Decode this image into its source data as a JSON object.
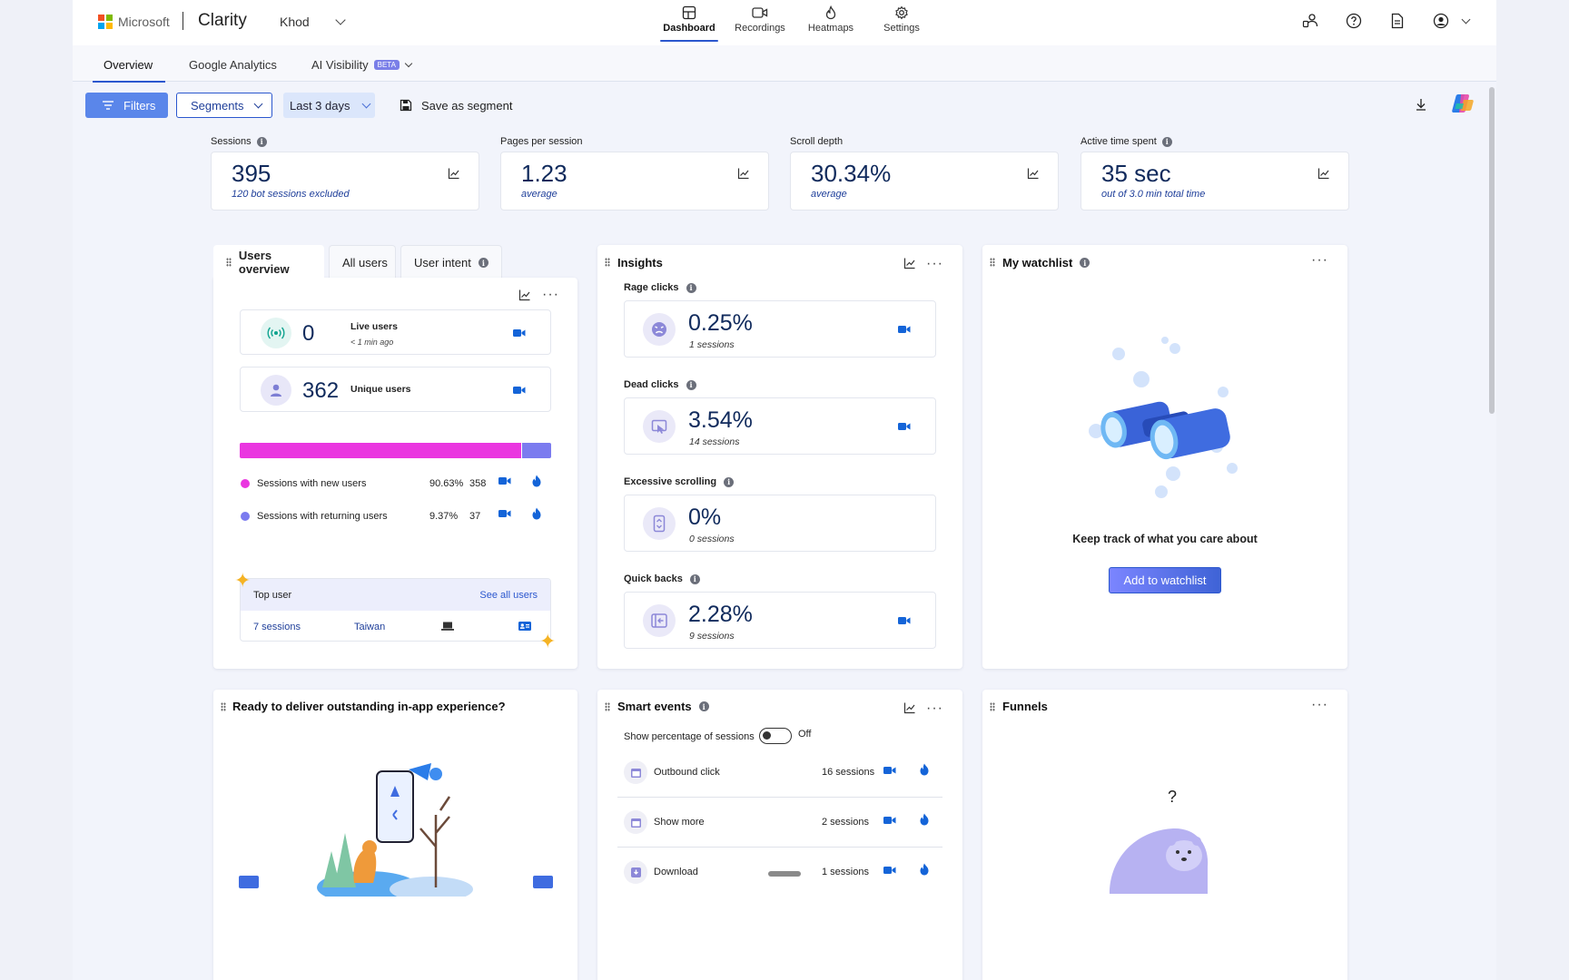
{
  "header": {
    "ms_label": "Microsoft",
    "brand": "Clarity",
    "project": "Khod",
    "nav": [
      {
        "label": "Dashboard",
        "icon": "dashboard-icon",
        "active": true
      },
      {
        "label": "Recordings",
        "icon": "video-icon",
        "active": false
      },
      {
        "label": "Heatmaps",
        "icon": "flame-icon",
        "active": false
      },
      {
        "label": "Settings",
        "icon": "gear-icon",
        "active": false
      }
    ],
    "actions": [
      "share-people-icon",
      "help-icon",
      "document-icon",
      "account-icon"
    ],
    "accent": "#2b57ce"
  },
  "subtabs": {
    "overview": "Overview",
    "ga": "Google Analytics",
    "ai": "AI Visibility",
    "beta": "BETA"
  },
  "toolbar": {
    "filters": "Filters",
    "segments": "Segments",
    "days": "Last 3 days",
    "save": "Save as segment"
  },
  "kpis": [
    {
      "label": "Sessions",
      "value": "395",
      "sub": "120 bot sessions excluded",
      "info": true
    },
    {
      "label": "Pages per session",
      "value": "1.23",
      "sub": "average",
      "info": false
    },
    {
      "label": "Scroll depth",
      "value": "30.34%",
      "sub": "average",
      "info": false
    },
    {
      "label": "Active time spent",
      "value": "35 sec",
      "sub": "out of 3.0 min total time",
      "info": true
    }
  ],
  "users": {
    "tabs": [
      "Users overview",
      "All users",
      "User intent"
    ],
    "live": {
      "value": "0",
      "label": "Live users",
      "sub": "< 1 min ago"
    },
    "unique": {
      "value": "362",
      "label": "Unique users"
    },
    "new_share": 0.9063,
    "rows": [
      {
        "label": "Sessions with new users",
        "pct": "90.63%",
        "count": "358",
        "color": "#ea36e0"
      },
      {
        "label": "Sessions with returning users",
        "pct": "9.37%",
        "count": "37",
        "color": "#7b7bef"
      }
    ],
    "top_user": {
      "title": "Top user",
      "link": "See all users",
      "sessions": "7 sessions",
      "country": "Taiwan"
    }
  },
  "insights": {
    "title": "Insights",
    "items": [
      {
        "label": "Rage clicks",
        "value": "0.25%",
        "sub": "1 sessions",
        "icon": "angry-face-icon"
      },
      {
        "label": "Dead clicks",
        "value": "3.54%",
        "sub": "14 sessions",
        "icon": "dead-click-icon"
      },
      {
        "label": "Excessive scrolling",
        "value": "0%",
        "sub": "0 sessions",
        "icon": "scroll-icon"
      },
      {
        "label": "Quick backs",
        "value": "2.28%",
        "sub": "9 sessions",
        "icon": "quick-back-icon"
      }
    ]
  },
  "watchlist": {
    "title": "My watchlist",
    "text": "Keep track of what you care about",
    "button": "Add to watchlist"
  },
  "inapp": {
    "title": "Ready to deliver outstanding in-app experience?"
  },
  "smart_events": {
    "title": "Smart events",
    "toggle_label": "Show percentage of sessions",
    "toggle_state": "Off",
    "rows": [
      {
        "name": "Outbound click",
        "sessions": "16 sessions"
      },
      {
        "name": "Show more",
        "sessions": "2 sessions"
      },
      {
        "name": "Download",
        "sessions": "1 sessions"
      }
    ]
  },
  "funnels": {
    "title": "Funnels",
    "placeholder": "?"
  }
}
